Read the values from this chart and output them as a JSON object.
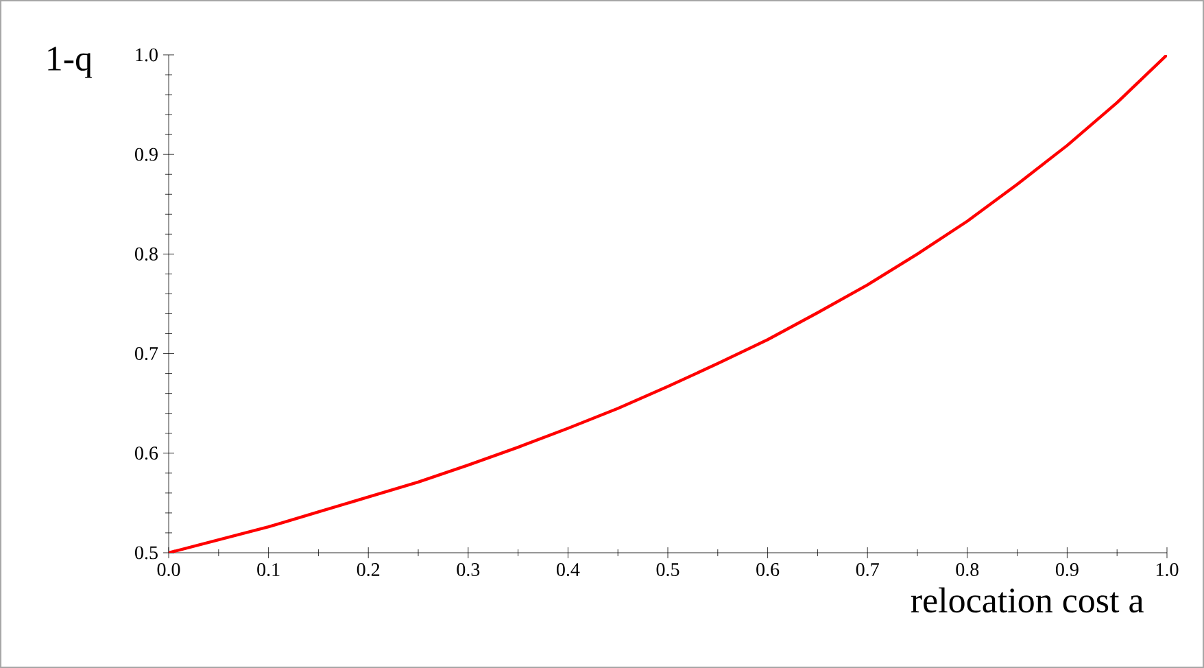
{
  "chart_data": {
    "type": "line",
    "xlabel": "relocation cost a",
    "ylabel": "1-q",
    "x": [
      0,
      0.05,
      0.1,
      0.15,
      0.2,
      0.25,
      0.3,
      0.35,
      0.4,
      0.45,
      0.5,
      0.55,
      0.6,
      0.65,
      0.7,
      0.75,
      0.8,
      0.85,
      0.9,
      0.95,
      1.0
    ],
    "series": [
      {
        "color": "#ff0000",
        "values": [
          0.5,
          0.513,
          0.526,
          0.541,
          0.556,
          0.571,
          0.588,
          0.606,
          0.625,
          0.645,
          0.667,
          0.69,
          0.714,
          0.741,
          0.769,
          0.8,
          0.833,
          0.87,
          0.909,
          0.952,
          1.0
        ]
      }
    ],
    "xlim": [
      0,
      1
    ],
    "ylim": [
      0.5,
      1
    ],
    "xticks": [
      {
        "value": 0,
        "label": "0.0"
      },
      0.1,
      0.2,
      0.3,
      0.4,
      0.5,
      0.6,
      0.7,
      0.8,
      0.9,
      {
        "value": 1,
        "label": "1.0"
      }
    ],
    "yticks": [
      0.5,
      0.6,
      0.7,
      0.8,
      0.9,
      {
        "value": 1,
        "label": "1.0"
      }
    ],
    "grid": false,
    "marker": "none",
    "line_style": "solid"
  }
}
